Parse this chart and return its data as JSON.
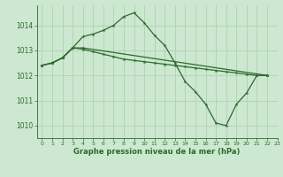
{
  "background_color": "#cce8d0",
  "grid_color": "#aaccaa",
  "line_color": "#2d6a2d",
  "xlabel": "Graphe pression niveau de la mer (hPa)",
  "xlim": [
    -0.5,
    23
  ],
  "ylim": [
    1009.5,
    1014.8
  ],
  "yticks": [
    1010,
    1011,
    1012,
    1013,
    1014
  ],
  "xticks": [
    0,
    1,
    2,
    3,
    4,
    5,
    6,
    7,
    8,
    9,
    10,
    11,
    12,
    13,
    14,
    15,
    16,
    17,
    18,
    19,
    20,
    21,
    22,
    23
  ],
  "line1_x": [
    0,
    1,
    2,
    3,
    4,
    5,
    6,
    7,
    8,
    9,
    10,
    11,
    12,
    13,
    14,
    15,
    16,
    17,
    18,
    19,
    20,
    21,
    22
  ],
  "line1_y": [
    1012.4,
    1012.5,
    1012.7,
    1013.1,
    1013.55,
    1013.65,
    1013.8,
    1014.0,
    1014.35,
    1014.5,
    1014.1,
    1013.6,
    1013.2,
    1012.5,
    1011.75,
    1011.35,
    1010.85,
    1010.1,
    1010.0,
    1010.85,
    1011.3,
    1012.0,
    1012.0
  ],
  "line2_x": [
    0,
    1,
    2,
    3,
    4,
    5,
    6,
    7,
    8,
    9,
    10,
    11,
    12,
    13,
    14,
    15,
    16,
    17,
    18,
    19,
    20,
    21,
    22
  ],
  "line2_y": [
    1012.4,
    1012.5,
    1012.7,
    1013.1,
    1013.05,
    1012.95,
    1012.85,
    1012.75,
    1012.65,
    1012.6,
    1012.55,
    1012.5,
    1012.45,
    1012.4,
    1012.35,
    1012.3,
    1012.25,
    1012.2,
    1012.15,
    1012.1,
    1012.05,
    1012.0,
    1012.0
  ],
  "line3_x": [
    0,
    1,
    2,
    3,
    4,
    22
  ],
  "line3_y": [
    1012.4,
    1012.5,
    1012.7,
    1013.1,
    1013.1,
    1012.0
  ]
}
